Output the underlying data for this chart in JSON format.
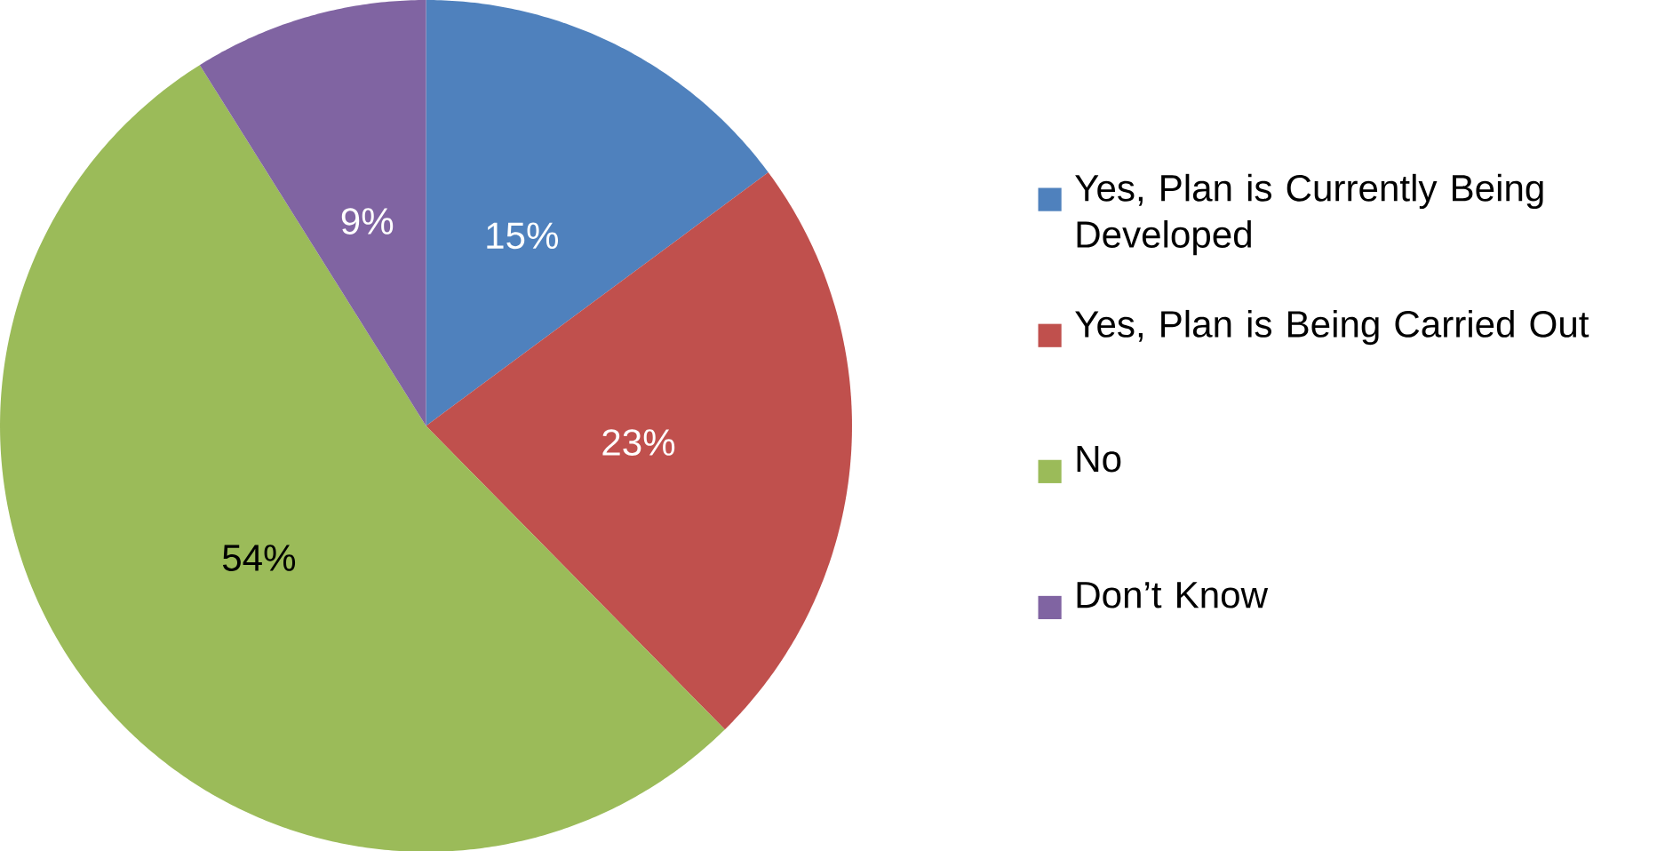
{
  "chart_data": {
    "type": "pie",
    "categories": [
      "Yes, Plan is Currently Being Developed",
      "Yes, Plan is Being Carried Out",
      "No",
      "Don’t Know"
    ],
    "values": [
      15,
      23,
      54,
      9
    ],
    "value_labels": [
      "15%",
      "23%",
      "54%",
      "9%"
    ],
    "colors": [
      "#4f81bd",
      "#c0504d",
      "#9bbb59",
      "#8064a2"
    ],
    "legend": "right"
  }
}
